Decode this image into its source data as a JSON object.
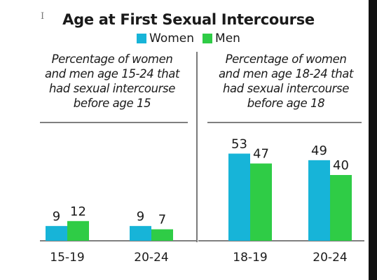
{
  "cursor_glyph": "I",
  "title": "Age at First Sexual Intercourse",
  "colors": {
    "women": "#17b4d8",
    "men": "#2fcc46",
    "axis": "#333333"
  },
  "legend": [
    {
      "label": "Women",
      "color": "#17b4d8"
    },
    {
      "label": "Men",
      "color": "#2fcc46"
    }
  ],
  "chart_data": [
    {
      "type": "bar",
      "title": "Percentage of women and men age 15-24 that had sexual intercourse before age 15",
      "title_lines": [
        "Percentage of women",
        "and men age 15-24 that",
        "had sexual intercourse",
        "before age 15"
      ],
      "categories": [
        "15-19",
        "20-24"
      ],
      "series": [
        {
          "name": "Women",
          "values": [
            9,
            9
          ]
        },
        {
          "name": "Men",
          "values": [
            12,
            7
          ]
        }
      ],
      "ylim": [
        0,
        60
      ],
      "legend": "top-center",
      "grid": false
    },
    {
      "type": "bar",
      "title": "Percentage of women and men age 18-24 that had sexual intercourse before age 18",
      "title_lines": [
        "Percentage of women",
        "and men age 18-24 that",
        "had sexual intercourse",
        "before age 18"
      ],
      "categories": [
        "18-19",
        "20-24"
      ],
      "series": [
        {
          "name": "Women",
          "values": [
            53,
            49
          ]
        },
        {
          "name": "Men",
          "values": [
            47,
            40
          ]
        }
      ],
      "ylim": [
        0,
        60
      ],
      "legend": "top-center",
      "grid": false
    }
  ]
}
